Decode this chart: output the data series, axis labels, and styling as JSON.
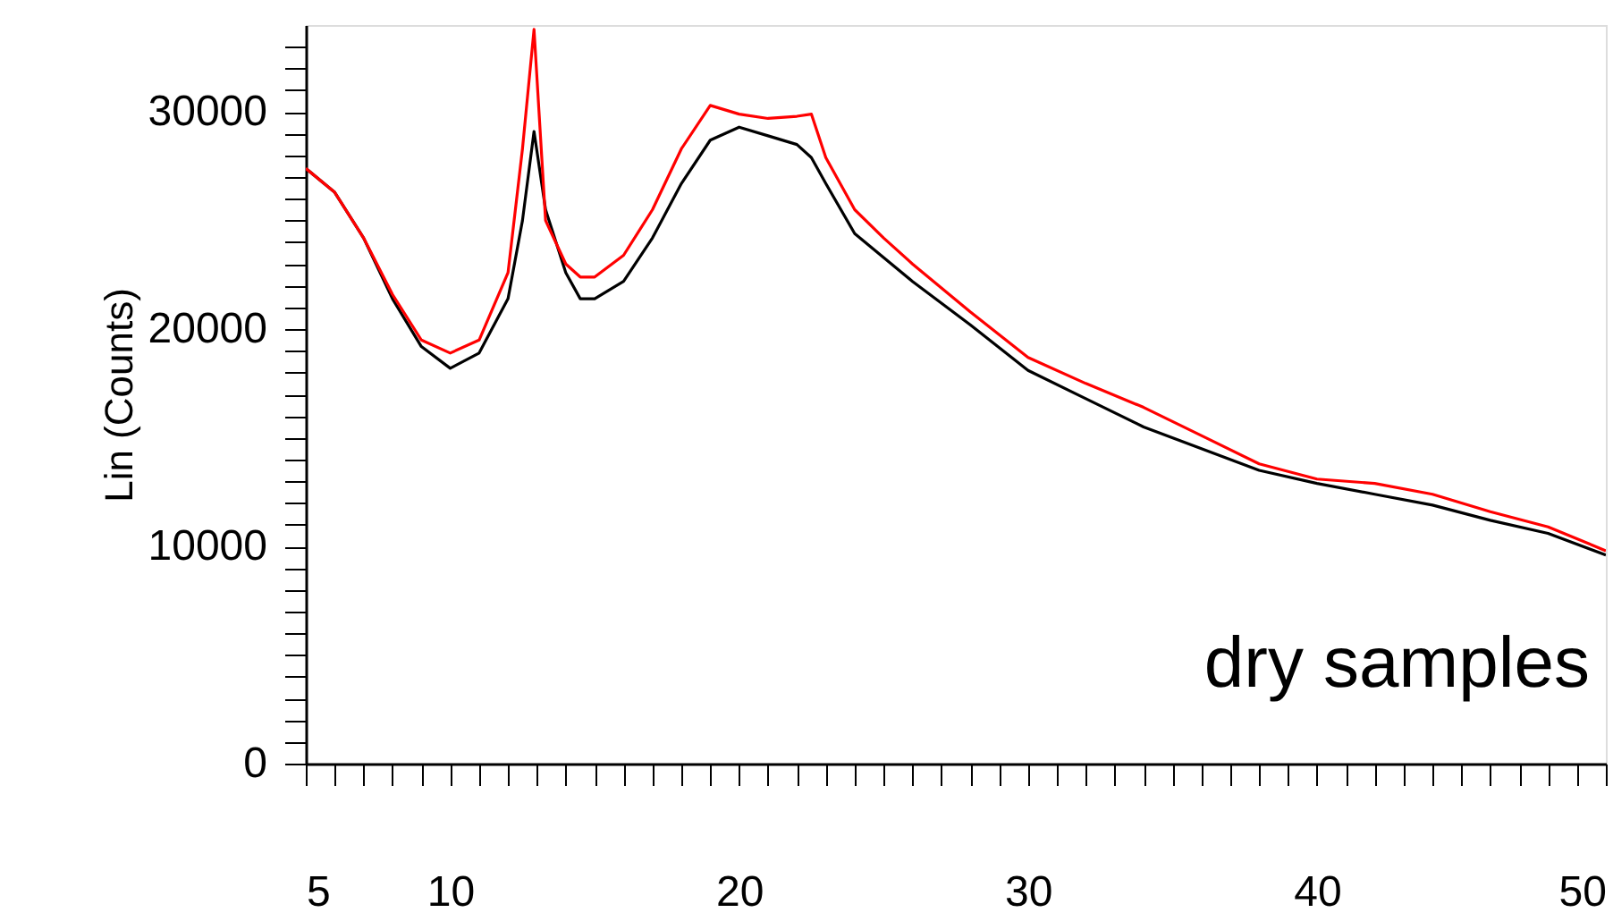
{
  "chart_data": {
    "type": "line",
    "ylabel": "Lin (Counts)",
    "annotations": [
      "dry samples"
    ],
    "x": [
      5,
      6,
      7,
      8,
      9,
      10,
      11,
      12,
      12.5,
      12.9,
      13.3,
      14,
      14.5,
      15,
      16,
      17,
      18,
      19,
      20,
      21,
      22,
      22.5,
      23,
      24,
      25,
      26,
      28,
      30,
      32,
      34,
      36,
      38,
      40,
      42,
      44,
      46,
      48,
      50
    ],
    "series": [
      {
        "color": "#000000",
        "values": [
          27400,
          26300,
          24200,
          21400,
          19200,
          18200,
          18900,
          21400,
          25000,
          29100,
          25500,
          22600,
          21400,
          21400,
          22200,
          24200,
          26700,
          28700,
          29300,
          28900,
          28500,
          27900,
          26700,
          24400,
          23300,
          22200,
          20200,
          18100,
          16800,
          15500,
          14500,
          13500,
          12900,
          12400,
          11900,
          11200,
          10600,
          9600
        ]
      },
      {
        "color": "#ff0000",
        "values": [
          27400,
          26300,
          24200,
          21600,
          19500,
          18900,
          19500,
          22600,
          28300,
          33800,
          25000,
          23000,
          22400,
          22400,
          23400,
          25500,
          28300,
          30300,
          29900,
          29700,
          29800,
          29900,
          27900,
          25500,
          24200,
          23000,
          20800,
          18700,
          17500,
          16400,
          15100,
          13800,
          13100,
          12900,
          12400,
          11600,
          10900,
          9800
        ]
      }
    ],
    "xlim": [
      5,
      50
    ],
    "ylim": [
      0,
      34000
    ],
    "xticks": [
      5,
      {
        "value": 6,
        "label": null
      },
      {
        "value": 7,
        "label": null
      },
      {
        "value": 8,
        "label": null
      },
      {
        "value": 9,
        "label": null
      },
      10,
      {
        "value": 11,
        "label": null
      },
      {
        "value": 12,
        "label": null
      },
      {
        "value": 13,
        "label": null
      },
      {
        "value": 14,
        "label": null
      },
      {
        "value": 15,
        "label": null
      },
      {
        "value": 16,
        "label": null
      },
      {
        "value": 17,
        "label": null
      },
      {
        "value": 18,
        "label": null
      },
      {
        "value": 19,
        "label": null
      },
      20,
      {
        "value": 21,
        "label": null
      },
      {
        "value": 22,
        "label": null
      },
      {
        "value": 23,
        "label": null
      },
      {
        "value": 24,
        "label": null
      },
      {
        "value": 25,
        "label": null
      },
      {
        "value": 26,
        "label": null
      },
      {
        "value": 27,
        "label": null
      },
      {
        "value": 28,
        "label": null
      },
      {
        "value": 29,
        "label": null
      },
      30,
      {
        "value": 31,
        "label": null
      },
      {
        "value": 32,
        "label": null
      },
      {
        "value": 33,
        "label": null
      },
      {
        "value": 34,
        "label": null
      },
      {
        "value": 35,
        "label": null
      },
      {
        "value": 36,
        "label": null
      },
      {
        "value": 37,
        "label": null
      },
      {
        "value": 38,
        "label": null
      },
      {
        "value": 39,
        "label": null
      },
      40,
      {
        "value": 41,
        "label": null
      },
      {
        "value": 42,
        "label": null
      },
      {
        "value": 43,
        "label": null
      },
      {
        "value": 44,
        "label": null
      },
      {
        "value": 45,
        "label": null
      },
      {
        "value": 46,
        "label": null
      },
      {
        "value": 47,
        "label": null
      },
      {
        "value": 48,
        "label": null
      },
      {
        "value": 49,
        "label": null
      },
      50
    ],
    "yticks": [
      0,
      {
        "value": 1000,
        "label": null
      },
      {
        "value": 2000,
        "label": null
      },
      {
        "value": 3000,
        "label": null
      },
      {
        "value": 4000,
        "label": null
      },
      {
        "value": 5000,
        "label": null
      },
      {
        "value": 6000,
        "label": null
      },
      {
        "value": 7000,
        "label": null
      },
      {
        "value": 8000,
        "label": null
      },
      {
        "value": 9000,
        "label": null
      },
      10000,
      {
        "value": 11000,
        "label": null
      },
      {
        "value": 12000,
        "label": null
      },
      {
        "value": 13000,
        "label": null
      },
      {
        "value": 14000,
        "label": null
      },
      {
        "value": 15000,
        "label": null
      },
      {
        "value": 16000,
        "label": null
      },
      {
        "value": 17000,
        "label": null
      },
      {
        "value": 18000,
        "label": null
      },
      {
        "value": 19000,
        "label": null
      },
      20000,
      {
        "value": 21000,
        "label": null
      },
      {
        "value": 22000,
        "label": null
      },
      {
        "value": 23000,
        "label": null
      },
      {
        "value": 24000,
        "label": null
      },
      {
        "value": 25000,
        "label": null
      },
      {
        "value": 26000,
        "label": null
      },
      {
        "value": 27000,
        "label": null
      },
      {
        "value": 28000,
        "label": null
      },
      {
        "value": 29000,
        "label": null
      },
      30000,
      {
        "value": 31000,
        "label": null
      },
      {
        "value": 32000,
        "label": null
      },
      {
        "value": 33000,
        "label": null
      }
    ],
    "grid": false,
    "marker": "none",
    "line_style": "solid"
  }
}
